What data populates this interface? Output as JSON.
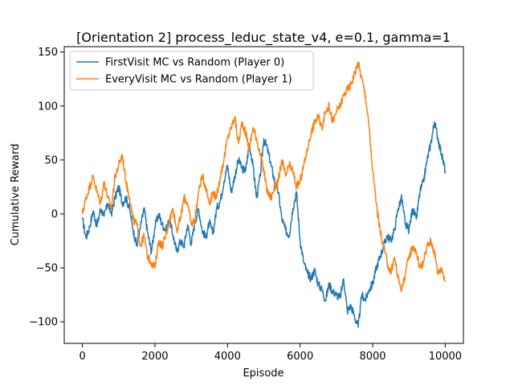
{
  "chart_data": {
    "type": "line",
    "title": "[Orientation 2] process_leduc_state_v4, e=0.1, gamma=1",
    "xlabel": "Episode",
    "ylabel": "Cumulative Reward",
    "xlim": [
      -500,
      10500
    ],
    "ylim": [
      -120,
      155
    ],
    "xticks": [
      0,
      2000,
      4000,
      6000,
      8000,
      10000
    ],
    "yticks": [
      -100,
      -50,
      0,
      50,
      100,
      150
    ],
    "grid": false,
    "legend_position": "top-left",
    "series": [
      {
        "name": "FirstVisit MC vs Random (Player 0)",
        "color": "#1f77b4",
        "x": [
          0,
          100,
          200,
          300,
          400,
          500,
          600,
          700,
          800,
          900,
          1000,
          1100,
          1200,
          1300,
          1400,
          1500,
          1600,
          1700,
          1800,
          1900,
          2000,
          2100,
          2200,
          2300,
          2400,
          2500,
          2600,
          2700,
          2800,
          2900,
          3000,
          3100,
          3200,
          3300,
          3400,
          3500,
          3600,
          3700,
          3800,
          3900,
          4000,
          4100,
          4200,
          4300,
          4400,
          4500,
          4600,
          4700,
          4800,
          4900,
          5000,
          5100,
          5200,
          5300,
          5400,
          5500,
          5600,
          5700,
          5800,
          5900,
          6000,
          6100,
          6200,
          6300,
          6400,
          6500,
          6600,
          6700,
          6800,
          6900,
          7000,
          7100,
          7200,
          7300,
          7400,
          7500,
          7600,
          7700,
          7800,
          7900,
          8000,
          8100,
          8200,
          8300,
          8400,
          8500,
          8600,
          8700,
          8800,
          8900,
          9000,
          9100,
          9200,
          9300,
          9400,
          9500,
          9600,
          9700,
          9800,
          9900,
          10000
        ],
        "values": [
          -5,
          -22,
          -12,
          3,
          -12,
          5,
          -2,
          10,
          0,
          15,
          25,
          10,
          15,
          5,
          -15,
          -30,
          -12,
          5,
          -18,
          -35,
          -12,
          0,
          -10,
          -15,
          -5,
          -20,
          -35,
          -25,
          -30,
          -10,
          -28,
          -8,
          5,
          -15,
          -22,
          -8,
          -18,
          5,
          12,
          30,
          45,
          20,
          35,
          50,
          42,
          40,
          65,
          45,
          15,
          35,
          70,
          60,
          45,
          30,
          20,
          -5,
          -15,
          -20,
          5,
          20,
          -25,
          -45,
          -55,
          -60,
          -52,
          -65,
          -70,
          -80,
          -65,
          -72,
          -75,
          -78,
          -60,
          -90,
          -85,
          -95,
          -105,
          -75,
          -80,
          -70,
          -65,
          -50,
          -40,
          -30,
          -20,
          -25,
          -15,
          5,
          15,
          -10,
          -15,
          5,
          -5,
          20,
          30,
          50,
          65,
          85,
          70,
          55,
          40
        ]
      },
      {
        "name": "EveryVisit MC vs Random (Player 1)",
        "color": "#ff7f0e",
        "x": [
          0,
          100,
          200,
          300,
          400,
          500,
          600,
          700,
          800,
          900,
          1000,
          1100,
          1200,
          1300,
          1400,
          1500,
          1600,
          1700,
          1800,
          1900,
          2000,
          2100,
          2200,
          2300,
          2400,
          2500,
          2600,
          2700,
          2800,
          2900,
          3000,
          3100,
          3200,
          3300,
          3400,
          3500,
          3600,
          3700,
          3800,
          3900,
          4000,
          4100,
          4200,
          4300,
          4400,
          4500,
          4600,
          4700,
          4800,
          4900,
          5000,
          5100,
          5200,
          5300,
          5400,
          5500,
          5600,
          5700,
          5800,
          5900,
          6000,
          6100,
          6200,
          6300,
          6400,
          6500,
          6600,
          6700,
          6800,
          6900,
          7000,
          7100,
          7200,
          7300,
          7400,
          7500,
          7600,
          7700,
          7800,
          7900,
          8000,
          8100,
          8200,
          8300,
          8400,
          8500,
          8600,
          8700,
          8800,
          8900,
          9000,
          9100,
          9200,
          9300,
          9400,
          9500,
          9600,
          9700,
          9800,
          9900,
          10000
        ],
        "values": [
          0,
          15,
          25,
          35,
          20,
          10,
          30,
          15,
          5,
          35,
          45,
          55,
          30,
          15,
          -5,
          -10,
          -30,
          -20,
          -40,
          -45,
          -50,
          -25,
          -30,
          -20,
          -5,
          5,
          -15,
          -5,
          15,
          10,
          -10,
          -5,
          20,
          35,
          25,
          10,
          20,
          15,
          35,
          50,
          70,
          80,
          90,
          65,
          85,
          75,
          60,
          80,
          70,
          55,
          40,
          20,
          15,
          25,
          30,
          50,
          35,
          45,
          40,
          25,
          30,
          45,
          60,
          75,
          85,
          90,
          80,
          95,
          100,
          85,
          95,
          100,
          110,
          115,
          120,
          130,
          140,
          125,
          110,
          80,
          40,
          10,
          -15,
          -30,
          -45,
          -55,
          -40,
          -60,
          -70,
          -55,
          -40,
          -30,
          -35,
          -50,
          -45,
          -30,
          -25,
          -35,
          -55,
          -50,
          -62
        ]
      }
    ]
  }
}
